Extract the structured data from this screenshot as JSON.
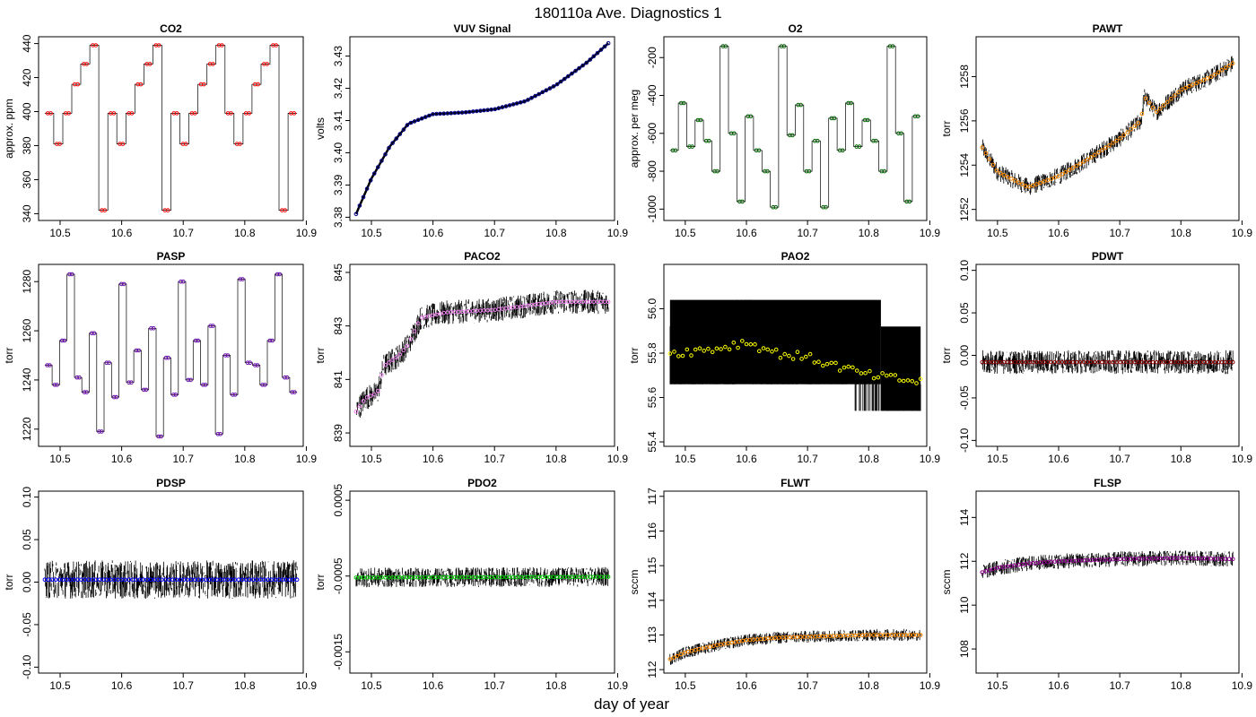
{
  "figure": {
    "title": "180110a   Ave. Diagnostics 1",
    "xlabel": "day of year"
  },
  "chart_data": [
    {
      "id": "co2",
      "type": "line",
      "title": "CO2",
      "ylabel": "approx. ppm",
      "xlim": [
        10.465,
        10.895
      ],
      "ylim": [
        336,
        444
      ],
      "xticks": [
        10.5,
        10.6,
        10.7,
        10.8,
        10.9
      ],
      "yticks": [
        340,
        360,
        380,
        400,
        420,
        440
      ],
      "marker_color": "#ff0000",
      "line_color": "#000000",
      "signal": "step",
      "levels": [
        399,
        381,
        399,
        416,
        428,
        439,
        342,
        399,
        381,
        399,
        416,
        428,
        439,
        342,
        399,
        381,
        399,
        416,
        428,
        439
      ],
      "step_count": 28
    },
    {
      "id": "vuv",
      "type": "line",
      "title": "VUV Signal",
      "ylabel": "volts",
      "xlim": [
        10.465,
        10.895
      ],
      "ylim": [
        3.379,
        3.436
      ],
      "xticks": [
        10.5,
        10.6,
        10.7,
        10.8,
        10.9
      ],
      "yticks": [
        3.38,
        3.39,
        3.4,
        3.41,
        3.42,
        3.43
      ],
      "marker_color": "#00008b",
      "line_color": "#000000",
      "signal": "curve",
      "x": [
        10.475,
        10.5,
        10.53,
        10.56,
        10.6,
        10.65,
        10.7,
        10.75,
        10.8,
        10.85,
        10.885
      ],
      "y": [
        3.381,
        3.392,
        3.402,
        3.409,
        3.412,
        3.4125,
        3.4135,
        3.416,
        3.421,
        3.428,
        3.434
      ]
    },
    {
      "id": "o2",
      "type": "line",
      "title": "O2",
      "ylabel": "approx. per meg",
      "xlim": [
        10.465,
        10.895
      ],
      "ylim": [
        -1060,
        -90
      ],
      "xticks": [
        10.5,
        10.6,
        10.7,
        10.8,
        10.9
      ],
      "yticks": [
        -1000,
        -800,
        -600,
        -400,
        -200
      ],
      "marker_color": "#006400",
      "line_color": "#000000",
      "signal": "step",
      "levels": [
        -690,
        -440,
        -670,
        -530,
        -640,
        -800,
        -140,
        -600,
        -960,
        -510,
        -690,
        -800,
        -990,
        -140,
        -610,
        -450,
        -800,
        -640,
        -990,
        -520
      ],
      "step_count": 30
    },
    {
      "id": "pawt",
      "type": "line",
      "title": "PAWT",
      "ylabel": "torr",
      "xlim": [
        10.465,
        10.895
      ],
      "ylim": [
        1251.5,
        1259.8
      ],
      "xticks": [
        10.5,
        10.6,
        10.7,
        10.8,
        10.9
      ],
      "yticks": [
        1252,
        1254,
        1256,
        1258
      ],
      "marker_color": "#ff8c00",
      "line_color": "#000000",
      "signal": "curve",
      "x": [
        10.475,
        10.5,
        10.55,
        10.6,
        10.65,
        10.7,
        10.735,
        10.74,
        10.76,
        10.8,
        10.85,
        10.885
      ],
      "y": [
        1254.8,
        1253.7,
        1253.0,
        1253.5,
        1254.3,
        1255.2,
        1256.0,
        1257.1,
        1256.4,
        1257.4,
        1258.0,
        1258.6
      ],
      "noise": 0.8
    },
    {
      "id": "pasp",
      "type": "line",
      "title": "PASP",
      "ylabel": "torr",
      "xlim": [
        10.465,
        10.895
      ],
      "ylim": [
        1213,
        1287
      ],
      "xticks": [
        10.5,
        10.6,
        10.7,
        10.8,
        10.9
      ],
      "yticks": [
        1220,
        1240,
        1260,
        1280
      ],
      "marker_color": "#6a0dad",
      "line_color": "#000000",
      "signal": "step",
      "levels": [
        1246,
        1238,
        1256,
        1283,
        1241,
        1235,
        1259,
        1219,
        1247,
        1233,
        1279,
        1239,
        1252,
        1236,
        1261,
        1217,
        1249,
        1234,
        1280,
        1240,
        1256,
        1238,
        1262,
        1218,
        1250,
        1234,
        1281,
        1247
      ],
      "step_count": 34
    },
    {
      "id": "paco2",
      "type": "line",
      "title": "PACO2",
      "ylabel": "torr",
      "xlim": [
        10.465,
        10.895
      ],
      "ylim": [
        838.5,
        845.3
      ],
      "xticks": [
        10.5,
        10.6,
        10.7,
        10.8,
        10.9
      ],
      "yticks": [
        839,
        841,
        843,
        845
      ],
      "marker_color": "#ee82ee",
      "line_color": "#000000",
      "signal": "curve",
      "x": [
        10.475,
        10.49,
        10.51,
        10.52,
        10.545,
        10.56,
        10.58,
        10.62,
        10.7,
        10.8,
        10.885
      ],
      "y": [
        839.8,
        840.3,
        840.5,
        841.5,
        841.9,
        842.3,
        843.3,
        843.5,
        843.6,
        843.9,
        843.9
      ],
      "noise": 0.9
    },
    {
      "id": "pao2",
      "type": "line",
      "title": "PAO2",
      "ylabel": "torr",
      "xlim": [
        10.465,
        10.895
      ],
      "ylim": [
        55.38,
        56.2
      ],
      "xticks": [
        10.5,
        10.6,
        10.7,
        10.8,
        10.9
      ],
      "yticks": [
        55.4,
        55.6,
        55.8,
        56.0
      ],
      "marker_color": "#ffff00",
      "line_color": "#000000",
      "signal": "quantized",
      "x": [
        10.475,
        10.55,
        10.6,
        10.65,
        10.7,
        10.75,
        10.8,
        10.885
      ],
      "y": [
        55.8,
        55.82,
        55.85,
        55.8,
        55.78,
        55.74,
        55.7,
        55.67
      ],
      "levels": [
        55.54,
        55.66,
        55.78,
        55.92,
        56.04,
        56.16
      ]
    },
    {
      "id": "pdwt",
      "type": "line",
      "title": "PDWT",
      "ylabel": "torr",
      "xlim": [
        10.465,
        10.895
      ],
      "ylim": [
        -0.107,
        0.107
      ],
      "xticks": [
        10.5,
        10.6,
        10.7,
        10.8,
        10.9
      ],
      "yticks": [
        -0.1,
        -0.05,
        0.0,
        0.05,
        0.1
      ],
      "marker_color": "#8b0000",
      "line_color": "#000000",
      "signal": "curve",
      "x": [
        10.475,
        10.885
      ],
      "y": [
        -0.008,
        -0.008
      ],
      "noise": 0.028
    },
    {
      "id": "pdsp",
      "type": "line",
      "title": "PDSP",
      "ylabel": "torr",
      "xlim": [
        10.465,
        10.895
      ],
      "ylim": [
        -0.107,
        0.107
      ],
      "xticks": [
        10.5,
        10.6,
        10.7,
        10.8,
        10.9
      ],
      "yticks": [
        -0.1,
        -0.05,
        0.0,
        0.05,
        0.1
      ],
      "marker_color": "#0000ff",
      "line_color": "#000000",
      "signal": "curve",
      "x": [
        10.475,
        10.885
      ],
      "y": [
        0.003,
        0.003
      ],
      "noise": 0.045
    },
    {
      "id": "pdo2",
      "type": "line",
      "title": "PDO2",
      "ylabel": "torr",
      "xlim": [
        10.465,
        10.895
      ],
      "ylim": [
        -0.00178,
        0.00062
      ],
      "xticks": [
        10.5,
        10.6,
        10.7,
        10.8,
        10.9
      ],
      "yticks": [
        -0.0015,
        -0.0005,
        0.0005
      ],
      "marker_color": "#00cc00",
      "line_color": "#000000",
      "signal": "curve",
      "x": [
        10.475,
        10.885
      ],
      "y": [
        -0.00052,
        -0.00051
      ],
      "noise": 0.00026
    },
    {
      "id": "flwt",
      "type": "line",
      "title": "FLWT",
      "ylabel": "sccm",
      "xlim": [
        10.465,
        10.895
      ],
      "ylim": [
        111.9,
        117.15
      ],
      "xticks": [
        10.5,
        10.6,
        10.7,
        10.8,
        10.9
      ],
      "yticks": [
        112,
        113,
        114,
        115,
        116,
        117
      ],
      "marker_color": "#ff8c00",
      "line_color": "#000000",
      "signal": "curve",
      "x": [
        10.475,
        10.5,
        10.55,
        10.6,
        10.65,
        10.7,
        10.8,
        10.885
      ],
      "y": [
        112.3,
        112.5,
        112.7,
        112.85,
        112.92,
        112.95,
        113.0,
        113.0
      ],
      "noise": 0.35
    },
    {
      "id": "flsp",
      "type": "line",
      "title": "FLSP",
      "ylabel": "sccm",
      "xlim": [
        10.465,
        10.895
      ],
      "ylim": [
        106.9,
        115.2
      ],
      "xticks": [
        10.5,
        10.6,
        10.7,
        10.8,
        10.9
      ],
      "yticks": [
        108,
        110,
        112,
        114
      ],
      "marker_color": "#8b008b",
      "line_color": "#000000",
      "signal": "curve",
      "x": [
        10.475,
        10.5,
        10.55,
        10.6,
        10.65,
        10.7,
        10.8,
        10.885
      ],
      "y": [
        111.5,
        111.7,
        111.9,
        112.0,
        112.05,
        112.1,
        112.15,
        112.1
      ],
      "noise": 0.7
    }
  ]
}
